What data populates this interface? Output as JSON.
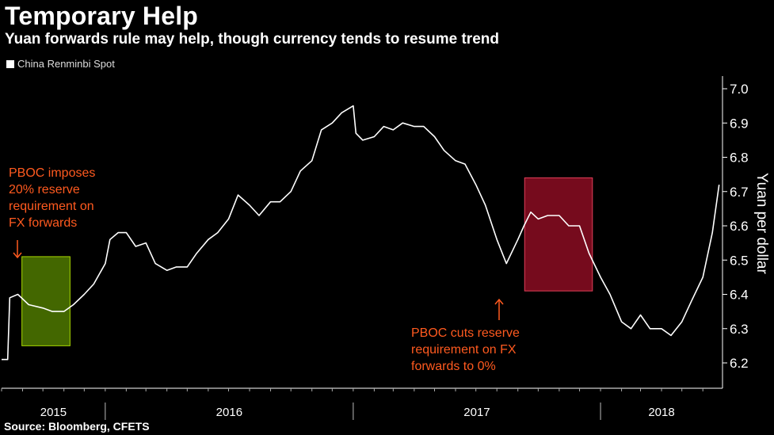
{
  "header": {
    "title": "Temporary Help",
    "subtitle": "Yuan forwards rule may help, though currency tends to resume trend"
  },
  "legend": {
    "label": "China Renminbi Spot"
  },
  "source": "Source: Bloomberg, CFETS",
  "annotations": {
    "impose": [
      "PBOC imposes",
      "20% reserve",
      "requirement on",
      "FX forwards"
    ],
    "cut": [
      "PBOC cuts reserve",
      "requirement on FX",
      "forwards to 0%"
    ]
  },
  "colors": {
    "line": "#ffffff",
    "annotation": "#ff5a1f",
    "highlight_green": "#5a8a00",
    "highlight_red": "#a8102a"
  },
  "chart_data": {
    "type": "line",
    "title": "Temporary Help",
    "subtitle": "Yuan forwards rule may help, though currency tends to resume trend",
    "ylabel": "Yuan per dollar",
    "ylim": [
      6.15,
      7.05
    ],
    "yticks": [
      6.2,
      6.3,
      6.4,
      6.5,
      6.6,
      6.7,
      6.8,
      6.9,
      7.0
    ],
    "xlim": [
      "2015-08-01",
      "2018-06-30"
    ],
    "xtick_labels": [
      "2015",
      "2016",
      "2017",
      "2018"
    ],
    "grid": false,
    "legend_position": "top-left",
    "series": [
      {
        "name": "China Renminbi Spot",
        "x": [
          "2015-08-01",
          "2015-08-10",
          "2015-08-13",
          "2015-08-25",
          "2015-09-10",
          "2015-10-01",
          "2015-10-15",
          "2015-11-01",
          "2015-11-15",
          "2015-12-01",
          "2015-12-15",
          "2016-01-01",
          "2016-01-08",
          "2016-01-20",
          "2016-02-01",
          "2016-02-15",
          "2016-03-01",
          "2016-03-15",
          "2016-04-01",
          "2016-04-15",
          "2016-05-01",
          "2016-05-15",
          "2016-06-01",
          "2016-06-15",
          "2016-07-01",
          "2016-07-15",
          "2016-08-01",
          "2016-08-15",
          "2016-09-01",
          "2016-09-15",
          "2016-10-01",
          "2016-10-15",
          "2016-11-01",
          "2016-11-15",
          "2016-12-01",
          "2016-12-15",
          "2017-01-01",
          "2017-01-05",
          "2017-01-15",
          "2017-02-01",
          "2017-02-15",
          "2017-03-01",
          "2017-03-15",
          "2017-04-01",
          "2017-04-15",
          "2017-05-01",
          "2017-05-15",
          "2017-06-01",
          "2017-06-15",
          "2017-07-01",
          "2017-07-15",
          "2017-08-01",
          "2017-08-15",
          "2017-09-01",
          "2017-09-10",
          "2017-09-20",
          "2017-10-01",
          "2017-10-15",
          "2017-11-01",
          "2017-11-15",
          "2017-12-01",
          "2017-12-15",
          "2018-01-01",
          "2018-01-15",
          "2018-02-01",
          "2018-02-15",
          "2018-03-01",
          "2018-03-15",
          "2018-04-01",
          "2018-04-15",
          "2018-05-01",
          "2018-05-15",
          "2018-06-01",
          "2018-06-15",
          "2018-06-25"
        ],
        "values": [
          6.21,
          6.21,
          6.39,
          6.4,
          6.37,
          6.36,
          6.35,
          6.35,
          6.37,
          6.4,
          6.43,
          6.49,
          6.56,
          6.58,
          6.58,
          6.54,
          6.55,
          6.49,
          6.47,
          6.48,
          6.48,
          6.52,
          6.56,
          6.58,
          6.62,
          6.69,
          6.66,
          6.63,
          6.67,
          6.67,
          6.7,
          6.76,
          6.79,
          6.88,
          6.9,
          6.93,
          6.95,
          6.87,
          6.85,
          6.86,
          6.89,
          6.88,
          6.9,
          6.89,
          6.89,
          6.86,
          6.82,
          6.79,
          6.78,
          6.72,
          6.66,
          6.56,
          6.49,
          6.56,
          6.6,
          6.64,
          6.62,
          6.63,
          6.63,
          6.6,
          6.6,
          6.52,
          6.45,
          6.4,
          6.32,
          6.3,
          6.34,
          6.3,
          6.3,
          6.28,
          6.32,
          6.38,
          6.45,
          6.58,
          6.72
        ]
      }
    ],
    "highlights": [
      {
        "label": "PBOC imposes 20% reserve requirement on FX forwards",
        "x_start": "2015-08-31",
        "x_end": "2015-11-10",
        "y_low": 6.25,
        "y_high": 6.51,
        "color": "green"
      },
      {
        "label": "PBOC cuts reserve requirement on FX forwards to 0%",
        "x_start": "2017-09-11",
        "x_end": "2017-12-20",
        "y_low": 6.41,
        "y_high": 6.74,
        "color": "red"
      }
    ]
  }
}
